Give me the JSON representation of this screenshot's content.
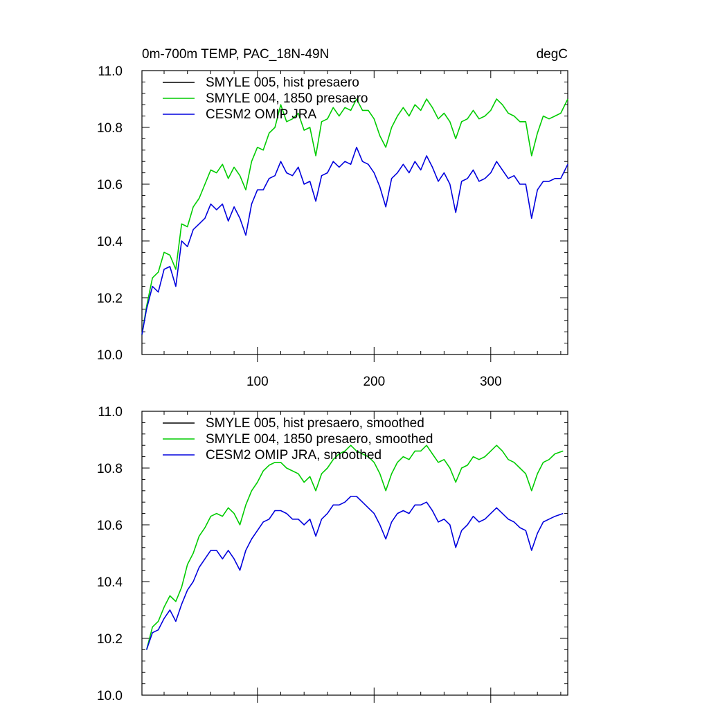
{
  "header": {
    "title": "0m-700m TEMP, PAC_18N-49N",
    "units": "degC"
  },
  "colors": {
    "smyle005": "#000000",
    "smyle004": "#00cc00",
    "cesm2": "#0000dd"
  },
  "chart_data": [
    {
      "type": "line",
      "title": "0m-700m TEMP, PAC_18N-49N",
      "right_label": "degC",
      "xlim": [
        1,
        366
      ],
      "ylim": [
        10.0,
        11.0
      ],
      "x_major_ticks": [
        100,
        200,
        300
      ],
      "x_tick_labels": [
        "100",
        "200",
        "300"
      ],
      "y_tick_labels": [
        "10.0",
        "10.2",
        "10.4",
        "10.6",
        "10.8",
        "11.0"
      ],
      "grid": false,
      "legend": "top-left",
      "series": [
        {
          "name": "SMYLE 005, hist presaero",
          "color": "#000000",
          "x": [],
          "y": []
        },
        {
          "name": "SMYLE 004, 1850 presaero",
          "color": "#00cc00",
          "x": [
            1,
            5,
            10,
            15,
            20,
            25,
            30,
            35,
            40,
            45,
            50,
            55,
            60,
            65,
            70,
            75,
            80,
            85,
            90,
            95,
            100,
            105,
            110,
            115,
            120,
            125,
            130,
            135,
            140,
            145,
            150,
            155,
            160,
            165,
            170,
            175,
            180,
            185,
            190,
            195,
            200,
            205,
            210,
            215,
            220,
            225,
            230,
            235,
            240,
            245,
            250,
            255,
            260,
            265,
            270,
            275,
            280,
            285,
            290,
            295,
            300,
            305,
            310,
            315,
            320,
            325,
            330,
            335,
            340,
            345,
            350,
            355,
            360,
            366
          ],
          "y": [
            10.07,
            10.17,
            10.27,
            10.29,
            10.36,
            10.35,
            10.3,
            10.46,
            10.45,
            10.52,
            10.55,
            10.6,
            10.65,
            10.64,
            10.67,
            10.62,
            10.66,
            10.63,
            10.58,
            10.68,
            10.73,
            10.72,
            10.78,
            10.8,
            10.88,
            10.82,
            10.83,
            10.85,
            10.79,
            10.8,
            10.7,
            10.82,
            10.83,
            10.87,
            10.84,
            10.87,
            10.86,
            10.9,
            10.86,
            10.86,
            10.83,
            10.77,
            10.73,
            10.8,
            10.84,
            10.87,
            10.84,
            10.88,
            10.86,
            10.9,
            10.87,
            10.83,
            10.85,
            10.82,
            10.76,
            10.82,
            10.83,
            10.86,
            10.83,
            10.84,
            10.86,
            10.9,
            10.88,
            10.85,
            10.84,
            10.82,
            10.82,
            10.7,
            10.78,
            10.84,
            10.83,
            10.84,
            10.85,
            10.9
          ]
        },
        {
          "name": "CESM2 OMIP JRA",
          "color": "#0000dd",
          "x": [
            1,
            5,
            10,
            15,
            20,
            25,
            30,
            35,
            40,
            45,
            50,
            55,
            60,
            65,
            70,
            75,
            80,
            85,
            90,
            95,
            100,
            105,
            110,
            115,
            120,
            125,
            130,
            135,
            140,
            145,
            150,
            155,
            160,
            165,
            170,
            175,
            180,
            185,
            190,
            195,
            200,
            205,
            210,
            215,
            220,
            225,
            230,
            235,
            240,
            245,
            250,
            255,
            260,
            265,
            270,
            275,
            280,
            285,
            290,
            295,
            300,
            305,
            310,
            315,
            320,
            325,
            330,
            335,
            340,
            345,
            350,
            355,
            360,
            366
          ],
          "y": [
            10.07,
            10.16,
            10.24,
            10.22,
            10.3,
            10.31,
            10.24,
            10.4,
            10.38,
            10.44,
            10.46,
            10.48,
            10.53,
            10.51,
            10.53,
            10.47,
            10.52,
            10.48,
            10.42,
            10.53,
            10.58,
            10.58,
            10.62,
            10.63,
            10.68,
            10.64,
            10.63,
            10.66,
            10.6,
            10.61,
            10.54,
            10.63,
            10.64,
            10.68,
            10.66,
            10.68,
            10.67,
            10.73,
            10.68,
            10.67,
            10.64,
            10.59,
            10.52,
            10.62,
            10.64,
            10.67,
            10.64,
            10.68,
            10.65,
            10.7,
            10.66,
            10.61,
            10.64,
            10.6,
            10.5,
            10.61,
            10.62,
            10.65,
            10.61,
            10.62,
            10.64,
            10.68,
            10.65,
            10.62,
            10.63,
            10.6,
            10.6,
            10.48,
            10.58,
            10.61,
            10.61,
            10.62,
            10.62,
            10.67
          ]
        }
      ]
    },
    {
      "type": "line",
      "xlim": [
        1,
        366
      ],
      "ylim": [
        10.0,
        11.0
      ],
      "x_major_ticks": [
        100,
        200,
        300
      ],
      "y_tick_labels": [
        "10.0",
        "10.2",
        "10.4",
        "10.6",
        "10.8",
        "11.0"
      ],
      "grid": false,
      "legend": "top-left",
      "series": [
        {
          "name": "SMYLE 005, hist presaero, smoothed",
          "color": "#000000",
          "x": [],
          "y": []
        },
        {
          "name": "SMYLE 004, 1850 presaero, smoothed",
          "color": "#00cc00",
          "x": [
            5,
            10,
            15,
            20,
            25,
            30,
            35,
            40,
            45,
            50,
            55,
            60,
            65,
            70,
            75,
            80,
            85,
            90,
            95,
            100,
            105,
            110,
            115,
            120,
            125,
            130,
            135,
            140,
            145,
            150,
            155,
            160,
            165,
            170,
            175,
            180,
            185,
            190,
            195,
            200,
            205,
            210,
            215,
            220,
            225,
            230,
            235,
            240,
            245,
            250,
            255,
            260,
            265,
            270,
            275,
            280,
            285,
            290,
            295,
            300,
            305,
            310,
            315,
            320,
            325,
            330,
            335,
            340,
            345,
            350,
            355,
            362
          ],
          "y": [
            10.16,
            10.24,
            10.26,
            10.31,
            10.35,
            10.33,
            10.38,
            10.46,
            10.5,
            10.56,
            10.59,
            10.63,
            10.64,
            10.63,
            10.66,
            10.64,
            10.6,
            10.67,
            10.72,
            10.75,
            10.79,
            10.81,
            10.82,
            10.82,
            10.8,
            10.79,
            10.78,
            10.75,
            10.77,
            10.72,
            10.78,
            10.8,
            10.83,
            10.85,
            10.86,
            10.88,
            10.86,
            10.85,
            10.84,
            10.82,
            10.78,
            10.72,
            10.78,
            10.82,
            10.84,
            10.83,
            10.86,
            10.86,
            10.88,
            10.85,
            10.82,
            10.83,
            10.8,
            10.75,
            10.8,
            10.81,
            10.84,
            10.83,
            10.84,
            10.86,
            10.88,
            10.86,
            10.83,
            10.82,
            10.8,
            10.78,
            10.72,
            10.78,
            10.82,
            10.83,
            10.85,
            10.86
          ]
        },
        {
          "name": "CESM2 OMIP JRA, smoothed",
          "color": "#0000dd",
          "x": [
            5,
            10,
            15,
            20,
            25,
            30,
            35,
            40,
            45,
            50,
            55,
            60,
            65,
            70,
            75,
            80,
            85,
            90,
            95,
            100,
            105,
            110,
            115,
            120,
            125,
            130,
            135,
            140,
            145,
            150,
            155,
            160,
            165,
            170,
            175,
            180,
            185,
            190,
            195,
            200,
            205,
            210,
            215,
            220,
            225,
            230,
            235,
            240,
            245,
            250,
            255,
            260,
            265,
            270,
            275,
            280,
            285,
            290,
            295,
            300,
            305,
            310,
            315,
            320,
            325,
            330,
            335,
            340,
            345,
            350,
            355,
            362
          ],
          "y": [
            10.16,
            10.22,
            10.23,
            10.27,
            10.3,
            10.26,
            10.32,
            10.37,
            10.4,
            10.45,
            10.48,
            10.51,
            10.51,
            10.48,
            10.51,
            10.48,
            10.44,
            10.51,
            10.55,
            10.58,
            10.61,
            10.62,
            10.65,
            10.65,
            10.64,
            10.62,
            10.62,
            10.6,
            10.62,
            10.56,
            10.62,
            10.64,
            10.67,
            10.67,
            10.68,
            10.7,
            10.7,
            10.68,
            10.66,
            10.64,
            10.6,
            10.55,
            10.61,
            10.64,
            10.65,
            10.64,
            10.67,
            10.67,
            10.68,
            10.65,
            10.61,
            10.62,
            10.6,
            10.52,
            10.58,
            10.6,
            10.63,
            10.61,
            10.62,
            10.64,
            10.66,
            10.64,
            10.62,
            10.61,
            10.59,
            10.58,
            10.51,
            10.57,
            10.61,
            10.62,
            10.63,
            10.64
          ]
        }
      ]
    }
  ]
}
